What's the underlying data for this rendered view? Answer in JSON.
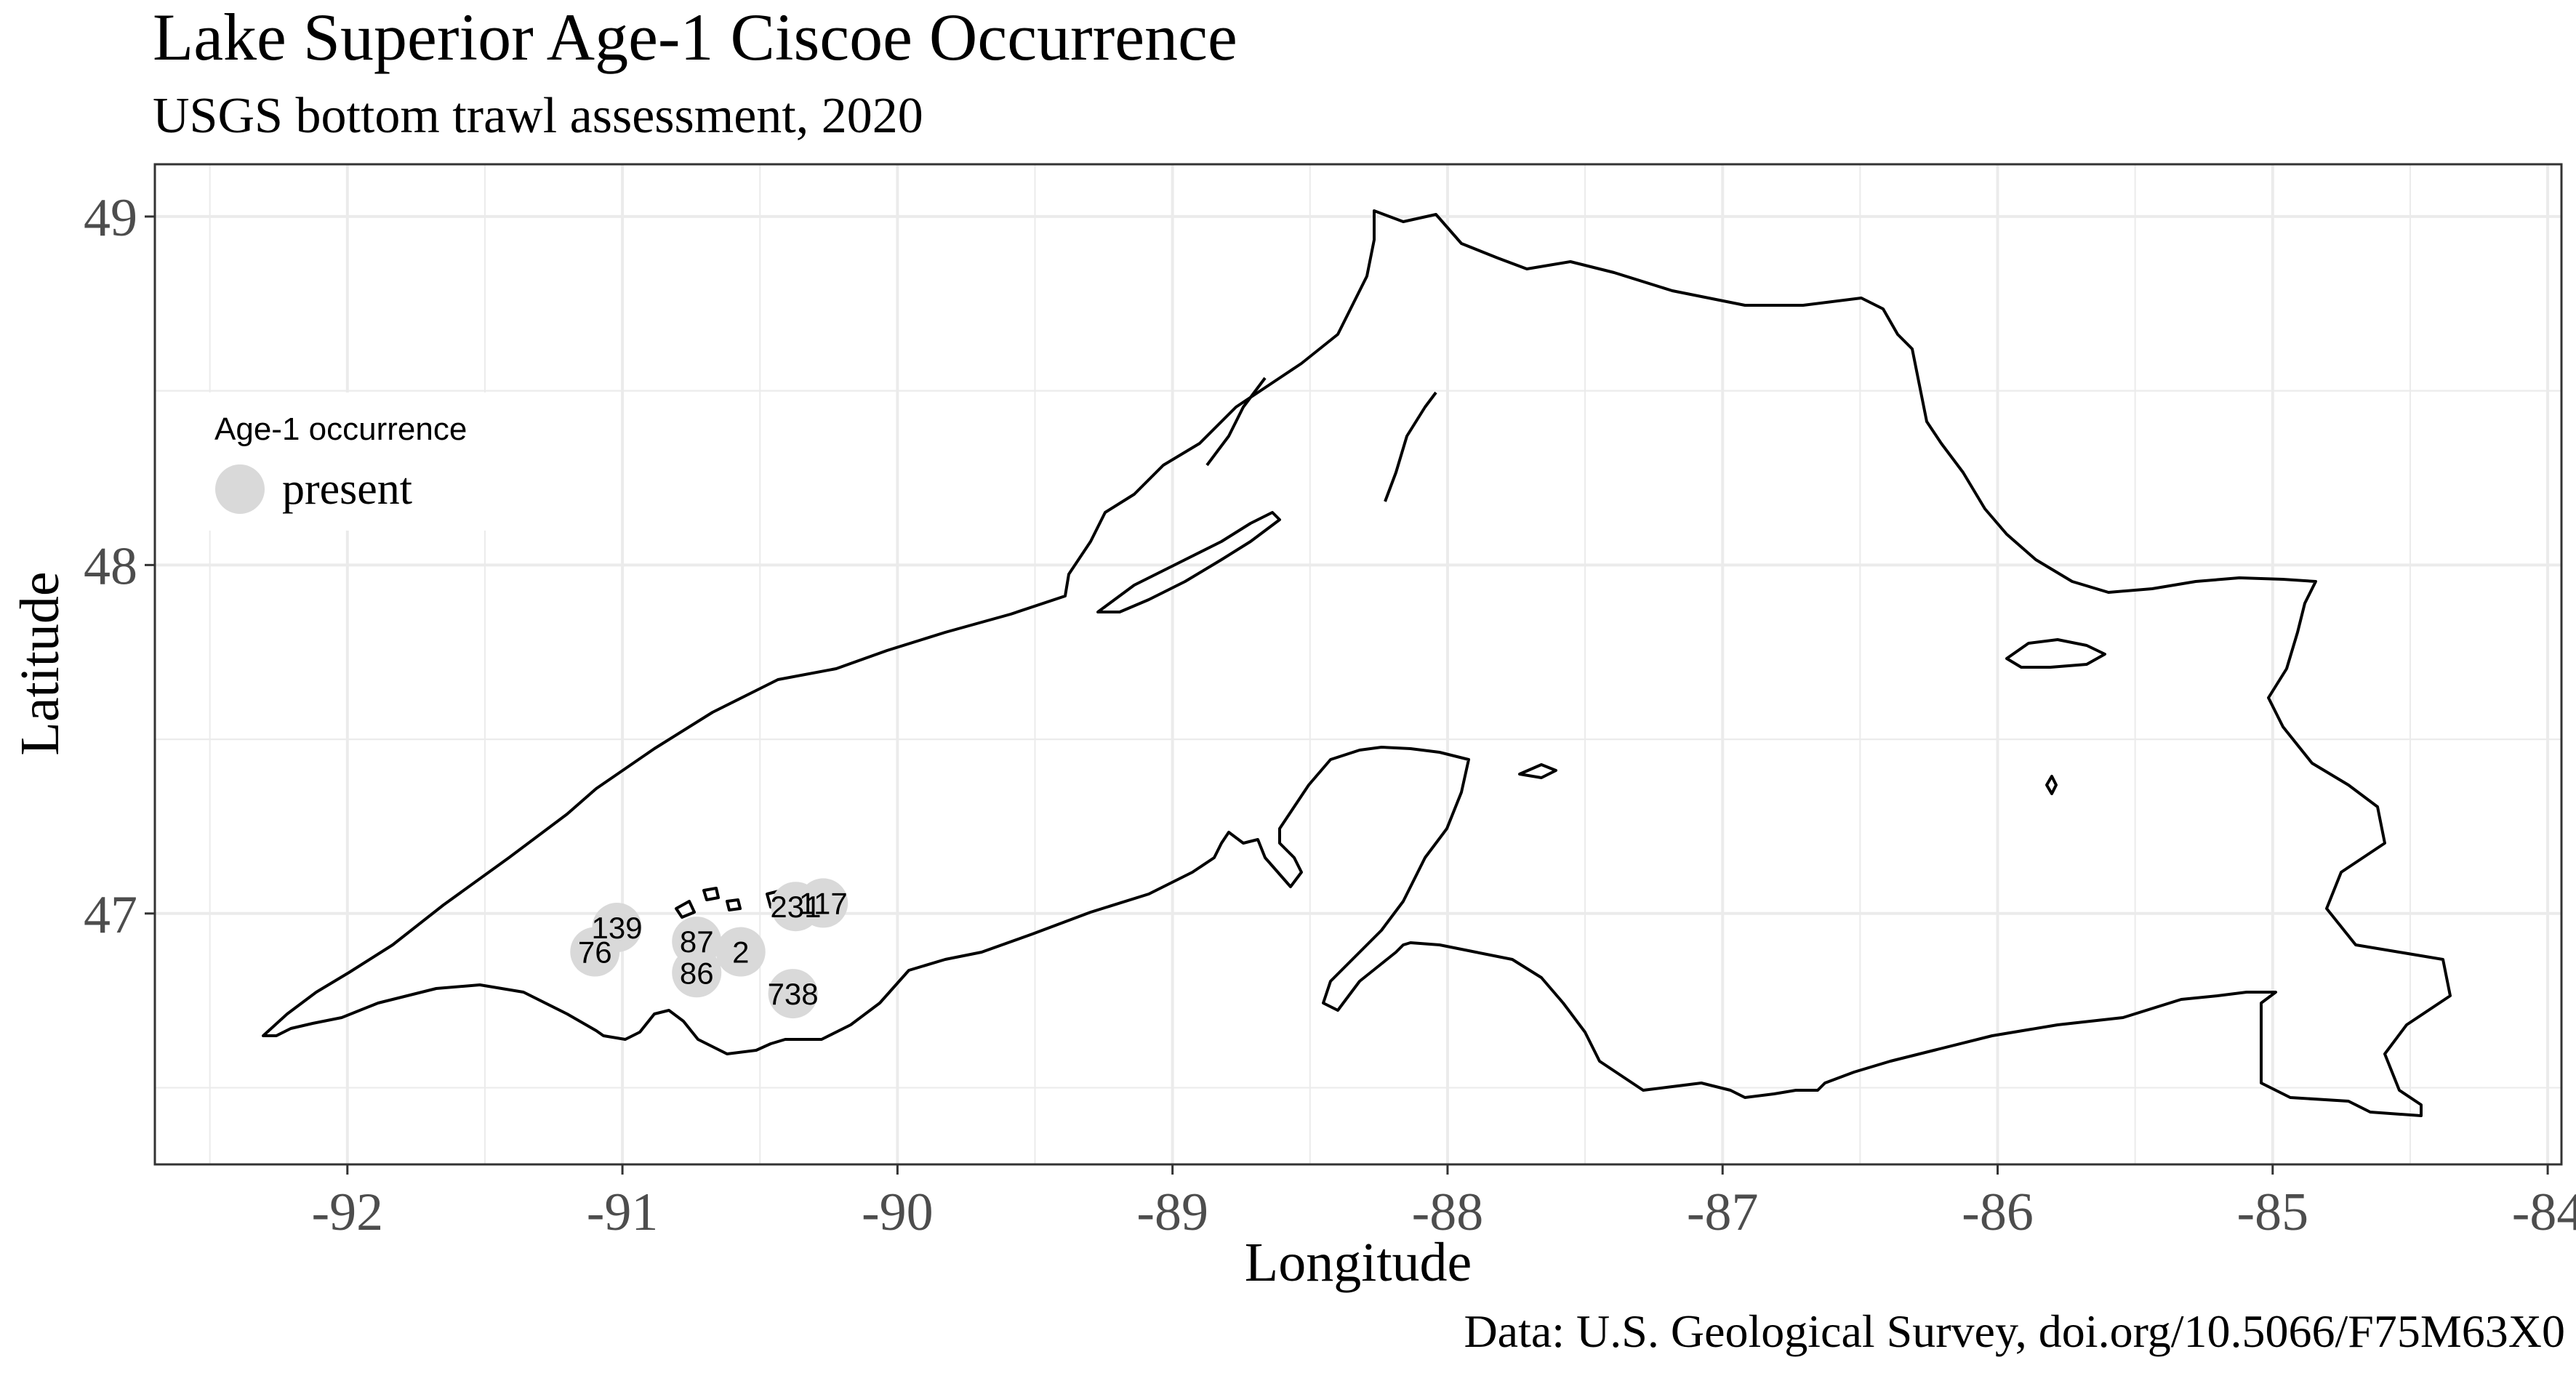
{
  "title": "Lake Superior Age-1 Ciscoe Occurrence",
  "subtitle": "USGS bottom trawl assessment,  2020",
  "caption": "Data: U.S. Geological Survey, doi.org/10.5066/F75M63X0",
  "x_axis": {
    "label": "Longitude",
    "ticks": [
      {
        "value": -92,
        "label": "-92"
      },
      {
        "value": -91,
        "label": "-91"
      },
      {
        "value": -90,
        "label": "-90"
      },
      {
        "value": -89,
        "label": "-89"
      },
      {
        "value": -88,
        "label": "-88"
      },
      {
        "value": -87,
        "label": "-87"
      },
      {
        "value": -86,
        "label": "-86"
      },
      {
        "value": -85,
        "label": "-85"
      },
      {
        "value": -84,
        "label": "-84"
      }
    ]
  },
  "y_axis": {
    "label": "Latitude",
    "ticks": [
      {
        "value": 47,
        "label": "47"
      },
      {
        "value": 48,
        "label": "48"
      },
      {
        "value": 49,
        "label": "49"
      }
    ]
  },
  "legend": {
    "title": "Age-1 occurrence",
    "items": [
      {
        "label": "present",
        "color": "#d9d9d9"
      }
    ],
    "position": "top-left inside"
  },
  "colors": {
    "point_fill": "#d9d9d9",
    "shoreline": "#000000",
    "grid": "#ebebeb",
    "panel_border": "#333333"
  },
  "chart_data": {
    "type": "scatter",
    "xlim": [
      -92.7,
      -83.95
    ],
    "ylim": [
      46.28,
      49.15
    ],
    "grid": true,
    "series": [
      {
        "name": "present",
        "points": [
          {
            "lon": -91.1,
            "lat": 46.89,
            "label": "76"
          },
          {
            "lon": -91.02,
            "lat": 46.96,
            "label": "139"
          },
          {
            "lon": -90.73,
            "lat": 46.92,
            "label": "87"
          },
          {
            "lon": -90.73,
            "lat": 46.83,
            "label": "86"
          },
          {
            "lon": -90.57,
            "lat": 46.89,
            "label": "2"
          },
          {
            "lon": -90.37,
            "lat": 47.02,
            "label": "231"
          },
          {
            "lon": -90.27,
            "lat": 47.03,
            "label": "117"
          },
          {
            "lon": -90.38,
            "lat": 46.77,
            "label": "738"
          }
        ]
      }
    ]
  }
}
